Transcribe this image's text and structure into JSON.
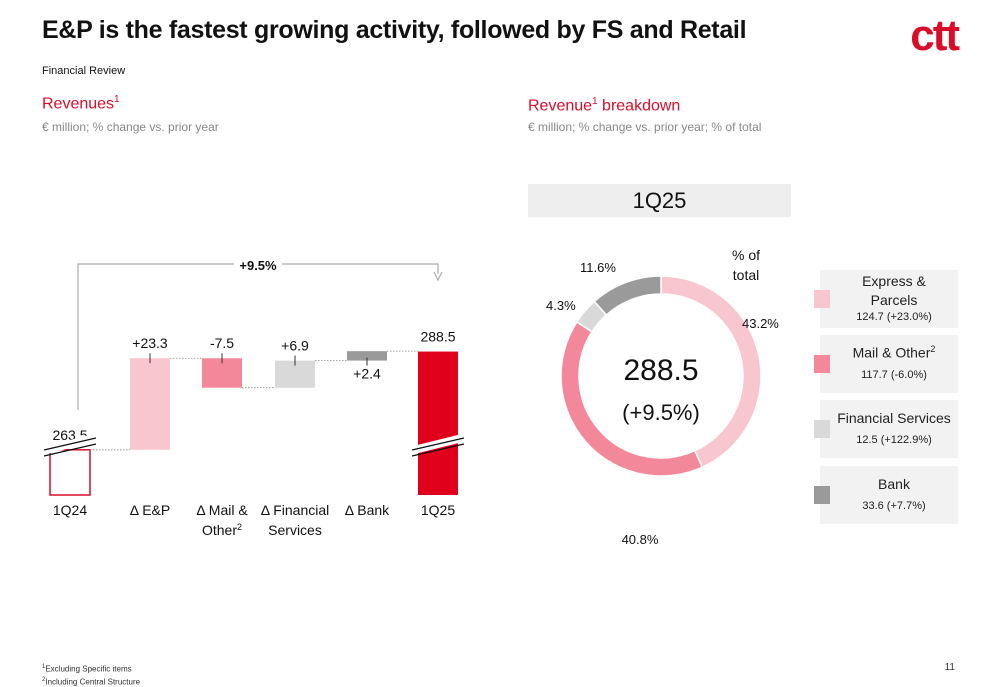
{
  "header": {
    "title": "E&P is the fastest growing activity, followed by FS and Retail",
    "subtitle": "Financial Review",
    "logo": "ctt"
  },
  "left_section": {
    "title": "Revenues",
    "title_sup": "1",
    "subtitle": "€ million; % change vs. prior year"
  },
  "right_section": {
    "title": "Revenue",
    "title_sup": "1",
    "title_rest": " breakdown",
    "subtitle": "€ million; % change vs. prior year; % of total",
    "period": "1Q25",
    "pct_of_total_label": "% of\ntotal"
  },
  "colors": {
    "accent": "#d90d2a",
    "ep": "#f8c6cf",
    "mail": "#f2889a",
    "fs": "#d9d9d9",
    "bank": "#9a9a9a",
    "total": "#e0001b"
  },
  "chart_data": [
    {
      "type": "bar",
      "subtype": "waterfall",
      "categories": [
        "1Q24",
        "Δ E&P",
        "Δ Mail & Other2",
        "Δ Financial Services",
        "Δ Bank",
        "1Q25"
      ],
      "category_lines": [
        [
          "1Q24"
        ],
        [
          "Δ E&P"
        ],
        [
          "Δ Mail &",
          "Other2"
        ],
        [
          "Δ Financial",
          "Services"
        ],
        [
          "Δ Bank"
        ],
        [
          "1Q25"
        ]
      ],
      "values": [
        263.5,
        23.3,
        -7.5,
        6.9,
        2.4,
        288.5
      ],
      "labels": [
        "263.5",
        "+23.3",
        "-7.5",
        "+6.9",
        "+2.4",
        "288.5"
      ],
      "growth_label": "+9.5%",
      "axis_break": true
    },
    {
      "type": "pie",
      "subtype": "donut",
      "center_value": "288.5",
      "center_change": "(+9.5%)",
      "series": [
        {
          "name": "Express & Parcels",
          "value": 124.7,
          "change": "+23.0%",
          "share": 43.2,
          "share_label": "43.2%",
          "legend_value": "124.7 (+23.0%)"
        },
        {
          "name": "Mail & Other",
          "name_sup": "2",
          "value": 117.7,
          "change": "-6.0%",
          "share": 40.8,
          "share_label": "40.8%",
          "legend_value": "117.7 (-6.0%)"
        },
        {
          "name": "Financial Services",
          "value": 12.5,
          "change": "+122.9%",
          "share": 4.3,
          "share_label": "4.3%",
          "legend_value": "12.5 (+122.9%)"
        },
        {
          "name": "Bank",
          "value": 33.6,
          "change": "+7.7%",
          "share": 11.6,
          "share_label": "11.6%",
          "legend_value": "33.6 (+7.7%)"
        }
      ]
    }
  ],
  "footnotes": [
    "1Excluding Specific items",
    "2Including Central Structure"
  ],
  "page_number": "11"
}
